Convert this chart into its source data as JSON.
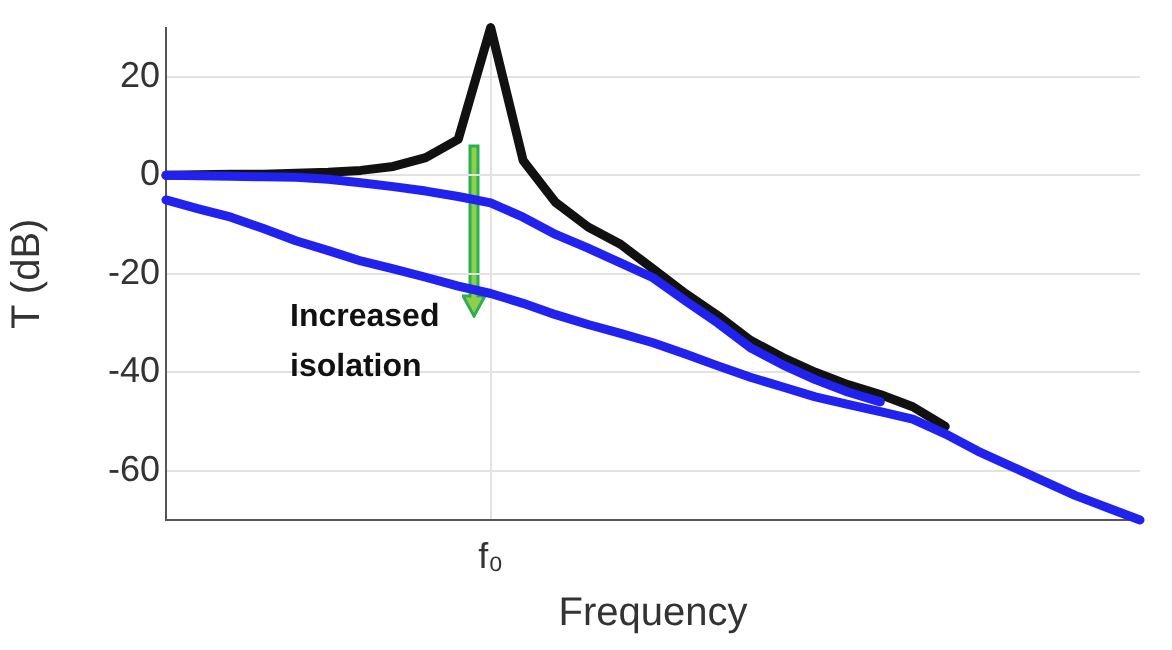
{
  "chart_data": {
    "type": "line",
    "xlabel": "Frequency",
    "ylabel": "T (dB)",
    "categories": [
      null,
      null,
      null,
      null,
      null,
      null,
      null,
      null,
      null,
      null,
      "f₀",
      null,
      null,
      null,
      null,
      null,
      null,
      null,
      null,
      null,
      null,
      null,
      null,
      null,
      null,
      null,
      null,
      null,
      null,
      null,
      null
    ],
    "ylim": [
      -70,
      30
    ],
    "yticks": [
      -60,
      -40,
      -20,
      0,
      20
    ],
    "grid": true,
    "legend": false,
    "annotations": [
      "Increased isolation"
    ],
    "series": [
      {
        "color": "#111111",
        "values": [
          0,
          0.1,
          0.2,
          0.2,
          0.4,
          0.6,
          1,
          1.8,
          3.6,
          7.3,
          30,
          3,
          -5.5,
          -10.5,
          -14,
          -19,
          -24,
          -28.5,
          -33.5,
          -37,
          -40,
          -42.5,
          -44.5,
          -47,
          -51,
          null,
          null,
          null,
          null,
          null,
          null
        ]
      },
      {
        "color": "#2222ee",
        "values": [
          0,
          -0.1,
          -0.2,
          -0.3,
          -0.4,
          -0.8,
          -1.5,
          -2.3,
          -3.2,
          -4.3,
          -5.6,
          -8.5,
          -12,
          -14.8,
          -17.8,
          -20.8,
          -25.5,
          -30,
          -35,
          -38.5,
          -41.5,
          -44,
          -46,
          null,
          null,
          null,
          null,
          null,
          null,
          null,
          null
        ]
      },
      {
        "color": "#2222ee",
        "values": [
          -5,
          -6.8,
          -8.5,
          -10.8,
          -13.3,
          -15.3,
          -17.4,
          -19,
          -20.7,
          -22.5,
          -24,
          -26,
          -28.3,
          -30.3,
          -32.1,
          -34,
          -36.3,
          -38.7,
          -41,
          -43,
          -45,
          -46.5,
          -48,
          -49.5,
          -52.5,
          -56,
          -59,
          -62,
          -65,
          -67.5,
          -70
        ]
      }
    ]
  }
}
